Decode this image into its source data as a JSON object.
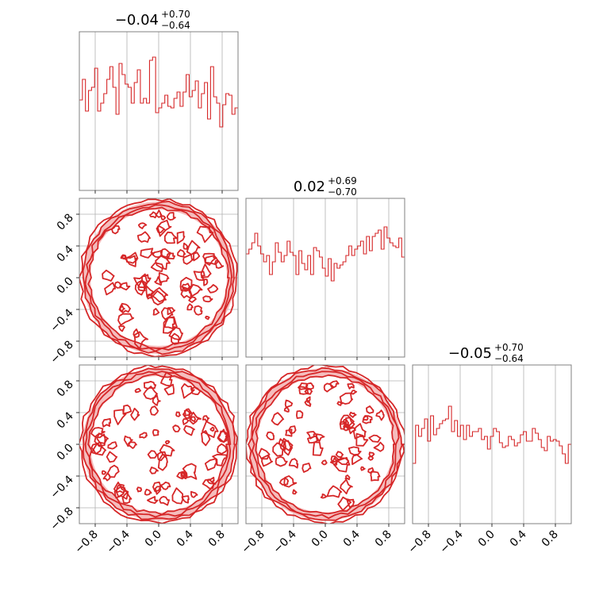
{
  "chart_data": {
    "type": "corner",
    "color": "#d62728",
    "fill_color": "#f4b6b6",
    "axis_range": [
      -1.0,
      1.0
    ],
    "ticks": [
      -0.8,
      -0.4,
      0.0,
      0.4,
      0.8
    ],
    "tick_labels": [
      "−0.8",
      "−0.4",
      "0.0",
      "0.4",
      "0.8"
    ],
    "grid": true,
    "parameters": [
      {
        "title_main": "−0.04",
        "title_plus": "+0.70",
        "title_minus": "−0.64"
      },
      {
        "title_main": "0.02",
        "title_plus": "+0.69",
        "title_minus": "−0.70"
      },
      {
        "title_main": "−0.05",
        "title_plus": "+0.70",
        "title_minus": "−0.64"
      }
    ],
    "histograms": [
      {
        "bin_range": [
          -1.0,
          1.0
        ],
        "counts": [
          0.57,
          0.7,
          0.5,
          0.63,
          0.65,
          0.77,
          0.5,
          0.55,
          0.61,
          0.7,
          0.78,
          0.65,
          0.48,
          0.8,
          0.73,
          0.67,
          0.65,
          0.55,
          0.68,
          0.76,
          0.55,
          0.58,
          0.55,
          0.82,
          0.84,
          0.49,
          0.52,
          0.55,
          0.6,
          0.53,
          0.52,
          0.58,
          0.62,
          0.53,
          0.62,
          0.73,
          0.59,
          0.63,
          0.69,
          0.52,
          0.61,
          0.68,
          0.45,
          0.78,
          0.59,
          0.55,
          0.4,
          0.54,
          0.61,
          0.6,
          0.48,
          0.52
        ]
      },
      {
        "bin_range": [
          -1.0,
          1.0
        ],
        "counts": [
          0.65,
          0.68,
          0.72,
          0.78,
          0.7,
          0.65,
          0.6,
          0.64,
          0.52,
          0.6,
          0.72,
          0.66,
          0.6,
          0.64,
          0.73,
          0.66,
          0.64,
          0.52,
          0.67,
          0.59,
          0.55,
          0.64,
          0.52,
          0.69,
          0.67,
          0.63,
          0.56,
          0.51,
          0.62,
          0.48,
          0.59,
          0.56,
          0.58,
          0.6,
          0.64,
          0.7,
          0.64,
          0.68,
          0.7,
          0.73,
          0.65,
          0.76,
          0.67,
          0.76,
          0.78,
          0.8,
          0.68,
          0.82,
          0.75,
          0.72,
          0.7,
          0.69,
          0.75,
          0.63
        ]
      },
      {
        "bin_range": [
          -1.0,
          1.0
        ],
        "counts": [
          0.38,
          0.62,
          0.55,
          0.6,
          0.66,
          0.52,
          0.68,
          0.56,
          0.6,
          0.63,
          0.65,
          0.66,
          0.74,
          0.58,
          0.65,
          0.55,
          0.62,
          0.53,
          0.62,
          0.55,
          0.58,
          0.58,
          0.6,
          0.53,
          0.55,
          0.47,
          0.55,
          0.6,
          0.58,
          0.51,
          0.48,
          0.49,
          0.55,
          0.53,
          0.49,
          0.51,
          0.56,
          0.58,
          0.52,
          0.52,
          0.6,
          0.57,
          0.53,
          0.48,
          0.46,
          0.55,
          0.52,
          0.53,
          0.52,
          0.49,
          0.44,
          0.38,
          0.5
        ]
      }
    ],
    "contour_panels": [
      {
        "x_param": 0,
        "y_param": 1,
        "support": "unit disk",
        "seed": 11
      },
      {
        "x_param": 0,
        "y_param": 2,
        "support": "unit disk",
        "seed": 23
      },
      {
        "x_param": 1,
        "y_param": 2,
        "support": "unit disk",
        "seed": 37
      }
    ]
  }
}
